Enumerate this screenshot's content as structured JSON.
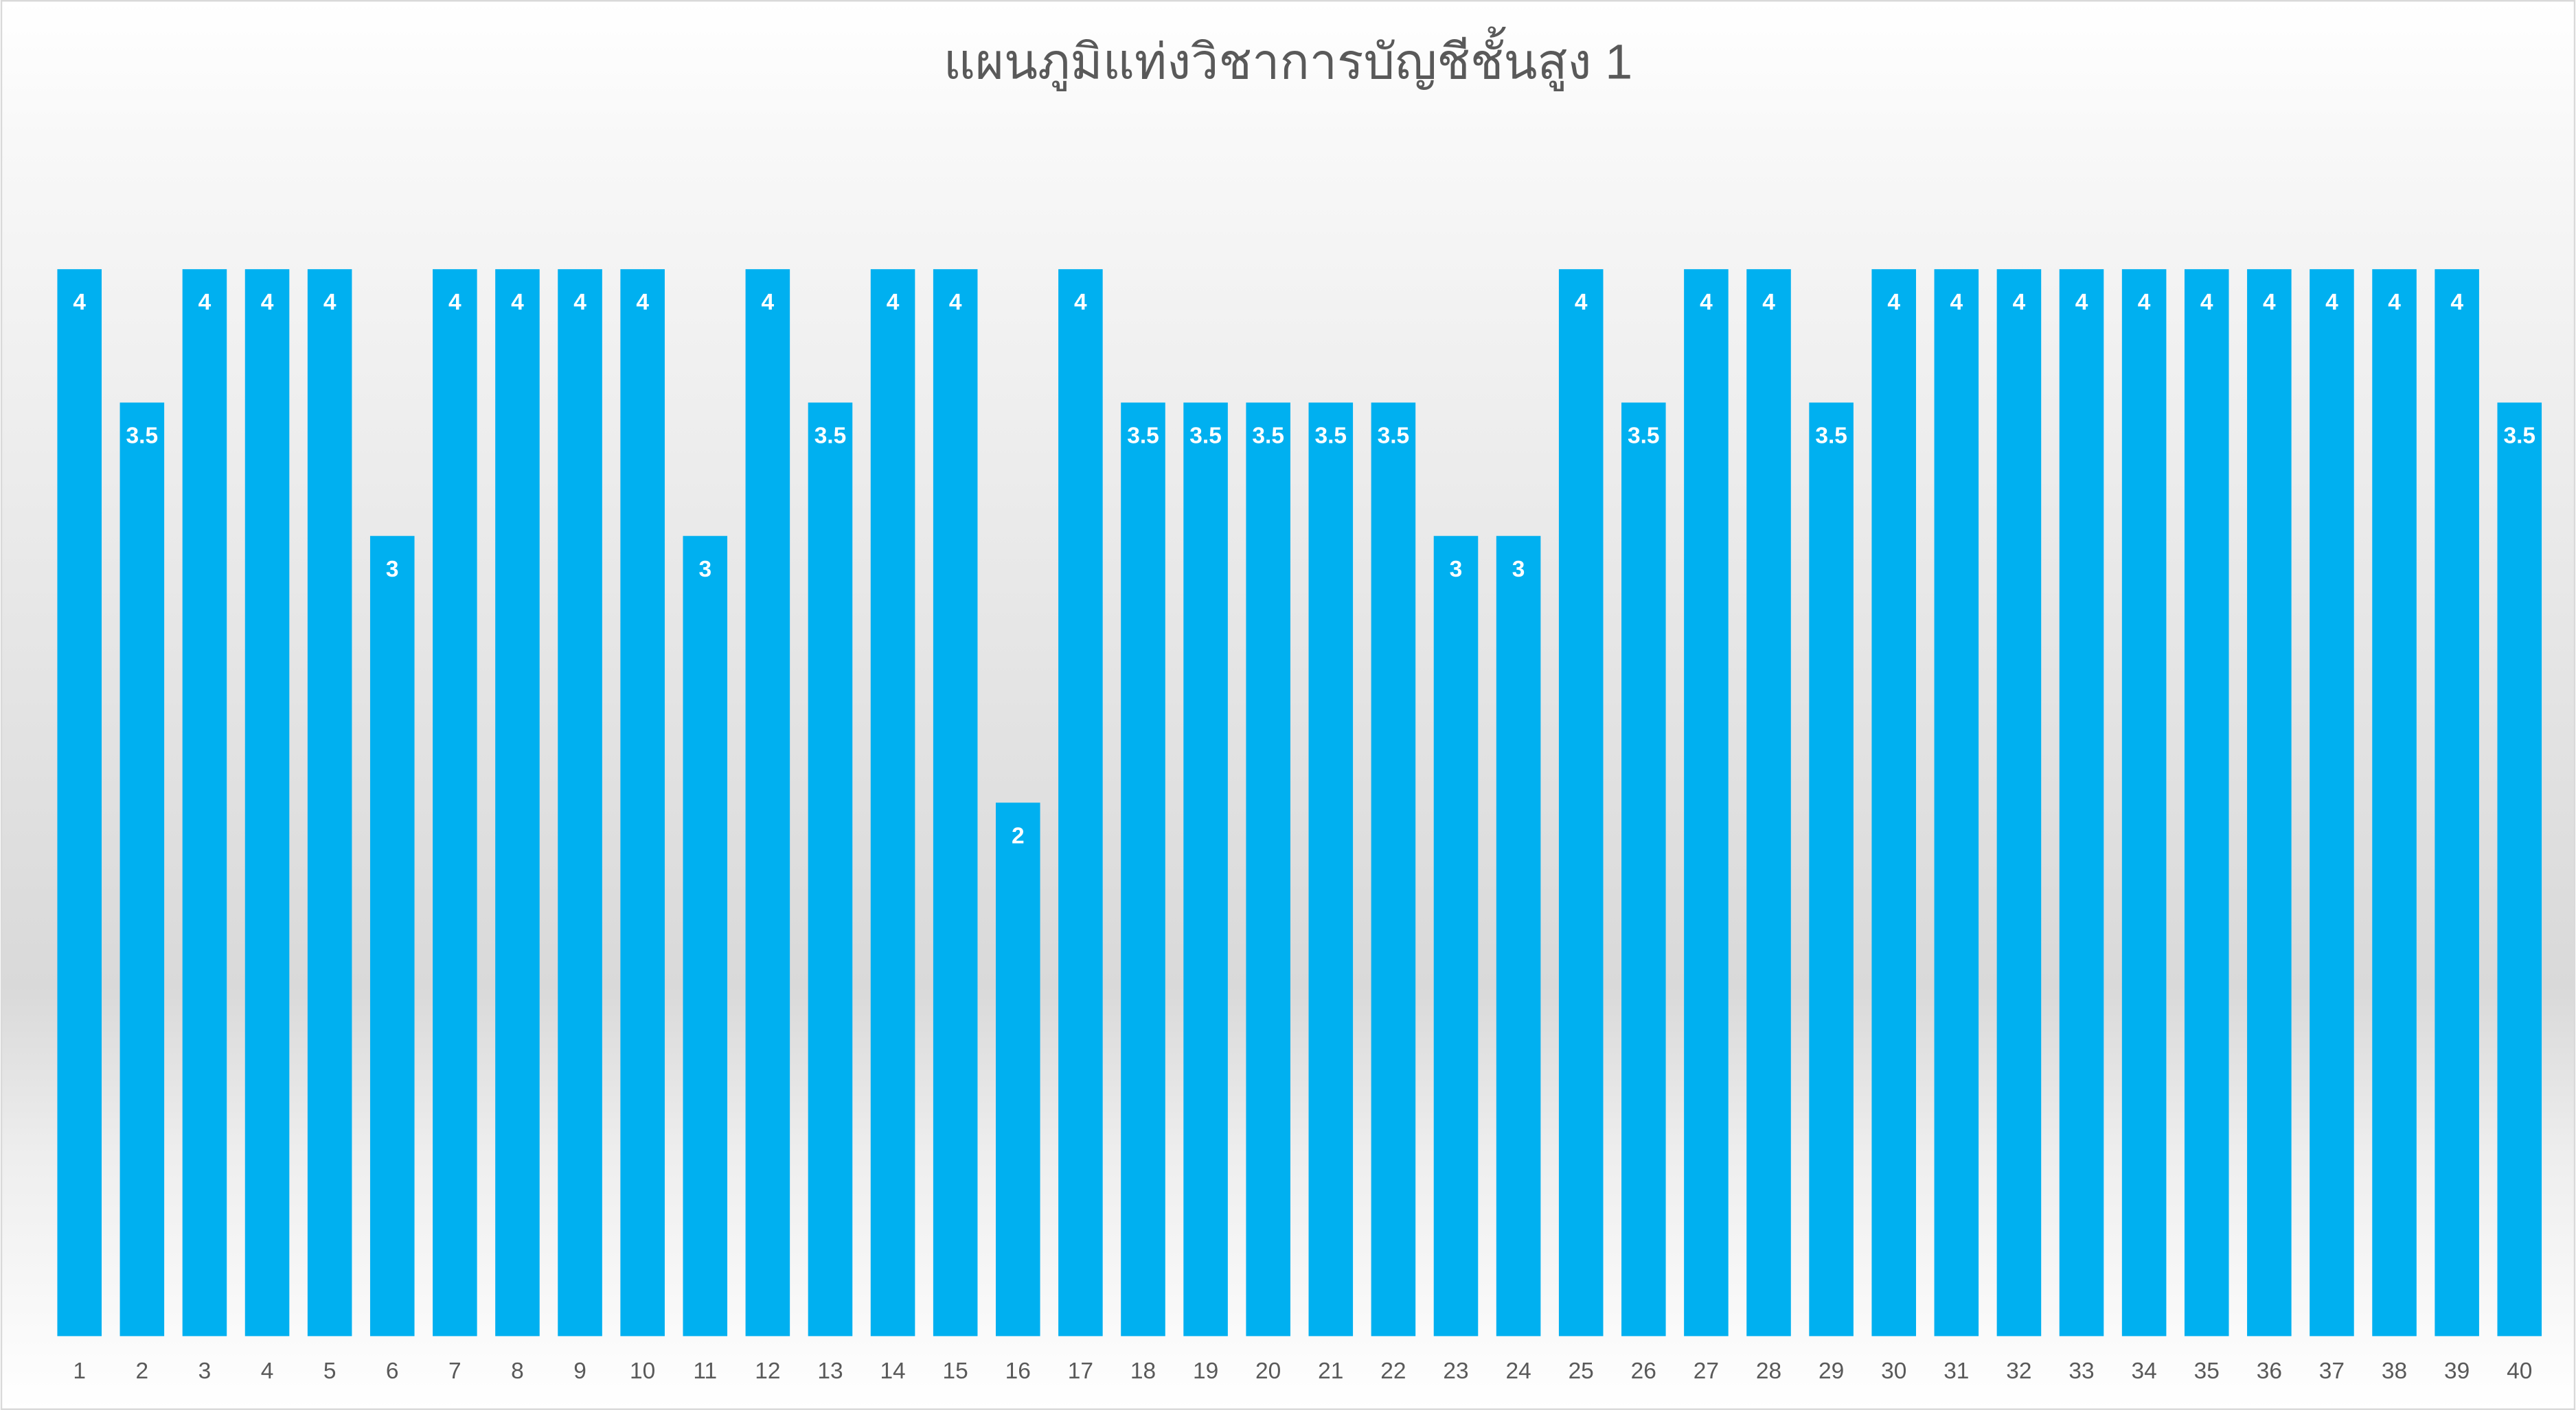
{
  "chart_data": {
    "type": "bar",
    "title": "แผนภูมิแท่งวิชาการบัญชีชั้นสูง 1",
    "categories": [
      "1",
      "2",
      "3",
      "4",
      "5",
      "6",
      "7",
      "8",
      "9",
      "10",
      "11",
      "12",
      "13",
      "14",
      "15",
      "16",
      "17",
      "18",
      "19",
      "20",
      "21",
      "22",
      "23",
      "24",
      "25",
      "26",
      "27",
      "28",
      "29",
      "30",
      "31",
      "32",
      "33",
      "34",
      "35",
      "36",
      "37",
      "38",
      "39",
      "40"
    ],
    "values": [
      4,
      3.5,
      4,
      4,
      4,
      3,
      4,
      4,
      4,
      4,
      3,
      4,
      3.5,
      4,
      4,
      2,
      4,
      3.5,
      3.5,
      3.5,
      3.5,
      3.5,
      3,
      3,
      4,
      3.5,
      4,
      4,
      3.5,
      4,
      4,
      4,
      4,
      4,
      4,
      4,
      4,
      4,
      4,
      3.5
    ],
    "color": "#00b0f0",
    "ylim": [
      0,
      4
    ]
  }
}
